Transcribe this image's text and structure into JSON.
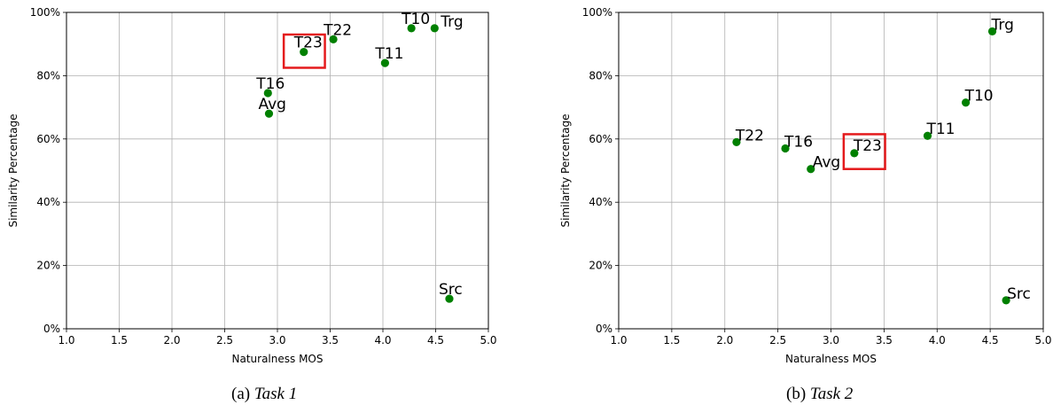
{
  "chart_data": [
    {
      "type": "scatter",
      "xlabel": "Naturalness MOS",
      "ylabel": "Similarity Percentage",
      "xlim": [
        1.0,
        5.0
      ],
      "ylim": [
        0,
        100
      ],
      "xticks": [
        "1.0",
        "1.5",
        "2.0",
        "2.5",
        "3.0",
        "3.5",
        "4.0",
        "4.5",
        "5.0"
      ],
      "yticks": [
        "0%",
        "20%",
        "40%",
        "60%",
        "80%",
        "100%"
      ],
      "grid": true,
      "marker_color": "#008000",
      "highlight_color": "#e41a1c",
      "highlight": "T23",
      "points": [
        {
          "label": "T23",
          "x": 3.25,
          "y": 87.5
        },
        {
          "label": "T22",
          "x": 3.53,
          "y": 91.5
        },
        {
          "label": "T10",
          "x": 4.27,
          "y": 95
        },
        {
          "label": "Trg",
          "x": 4.49,
          "y": 95
        },
        {
          "label": "T11",
          "x": 4.02,
          "y": 84
        },
        {
          "label": "T16",
          "x": 2.91,
          "y": 74.5
        },
        {
          "label": "Avg",
          "x": 2.92,
          "y": 68
        },
        {
          "label": "Src",
          "x": 4.63,
          "y": 9.5
        }
      ]
    },
    {
      "type": "scatter",
      "xlabel": "Naturalness MOS",
      "ylabel": "Similarity Percentage",
      "xlim": [
        1.0,
        5.0
      ],
      "ylim": [
        0,
        100
      ],
      "xticks": [
        "1.0",
        "1.5",
        "2.0",
        "2.5",
        "3.0",
        "3.5",
        "4.0",
        "4.5",
        "5.0"
      ],
      "yticks": [
        "0%",
        "20%",
        "40%",
        "60%",
        "80%",
        "100%"
      ],
      "grid": true,
      "marker_color": "#008000",
      "highlight_color": "#e41a1c",
      "highlight": "T23",
      "points": [
        {
          "label": "Trg",
          "x": 4.52,
          "y": 94
        },
        {
          "label": "T10",
          "x": 4.27,
          "y": 71.5
        },
        {
          "label": "T11",
          "x": 3.91,
          "y": 61
        },
        {
          "label": "T23",
          "x": 3.22,
          "y": 55.5
        },
        {
          "label": "T22",
          "x": 2.11,
          "y": 59
        },
        {
          "label": "T16",
          "x": 2.57,
          "y": 57
        },
        {
          "label": "Avg",
          "x": 2.81,
          "y": 50.5
        },
        {
          "label": "Src",
          "x": 4.65,
          "y": 9
        }
      ]
    }
  ],
  "captions": [
    {
      "letter": "(a)",
      "text": "Task 1"
    },
    {
      "letter": "(b)",
      "text": "Task 2"
    }
  ]
}
